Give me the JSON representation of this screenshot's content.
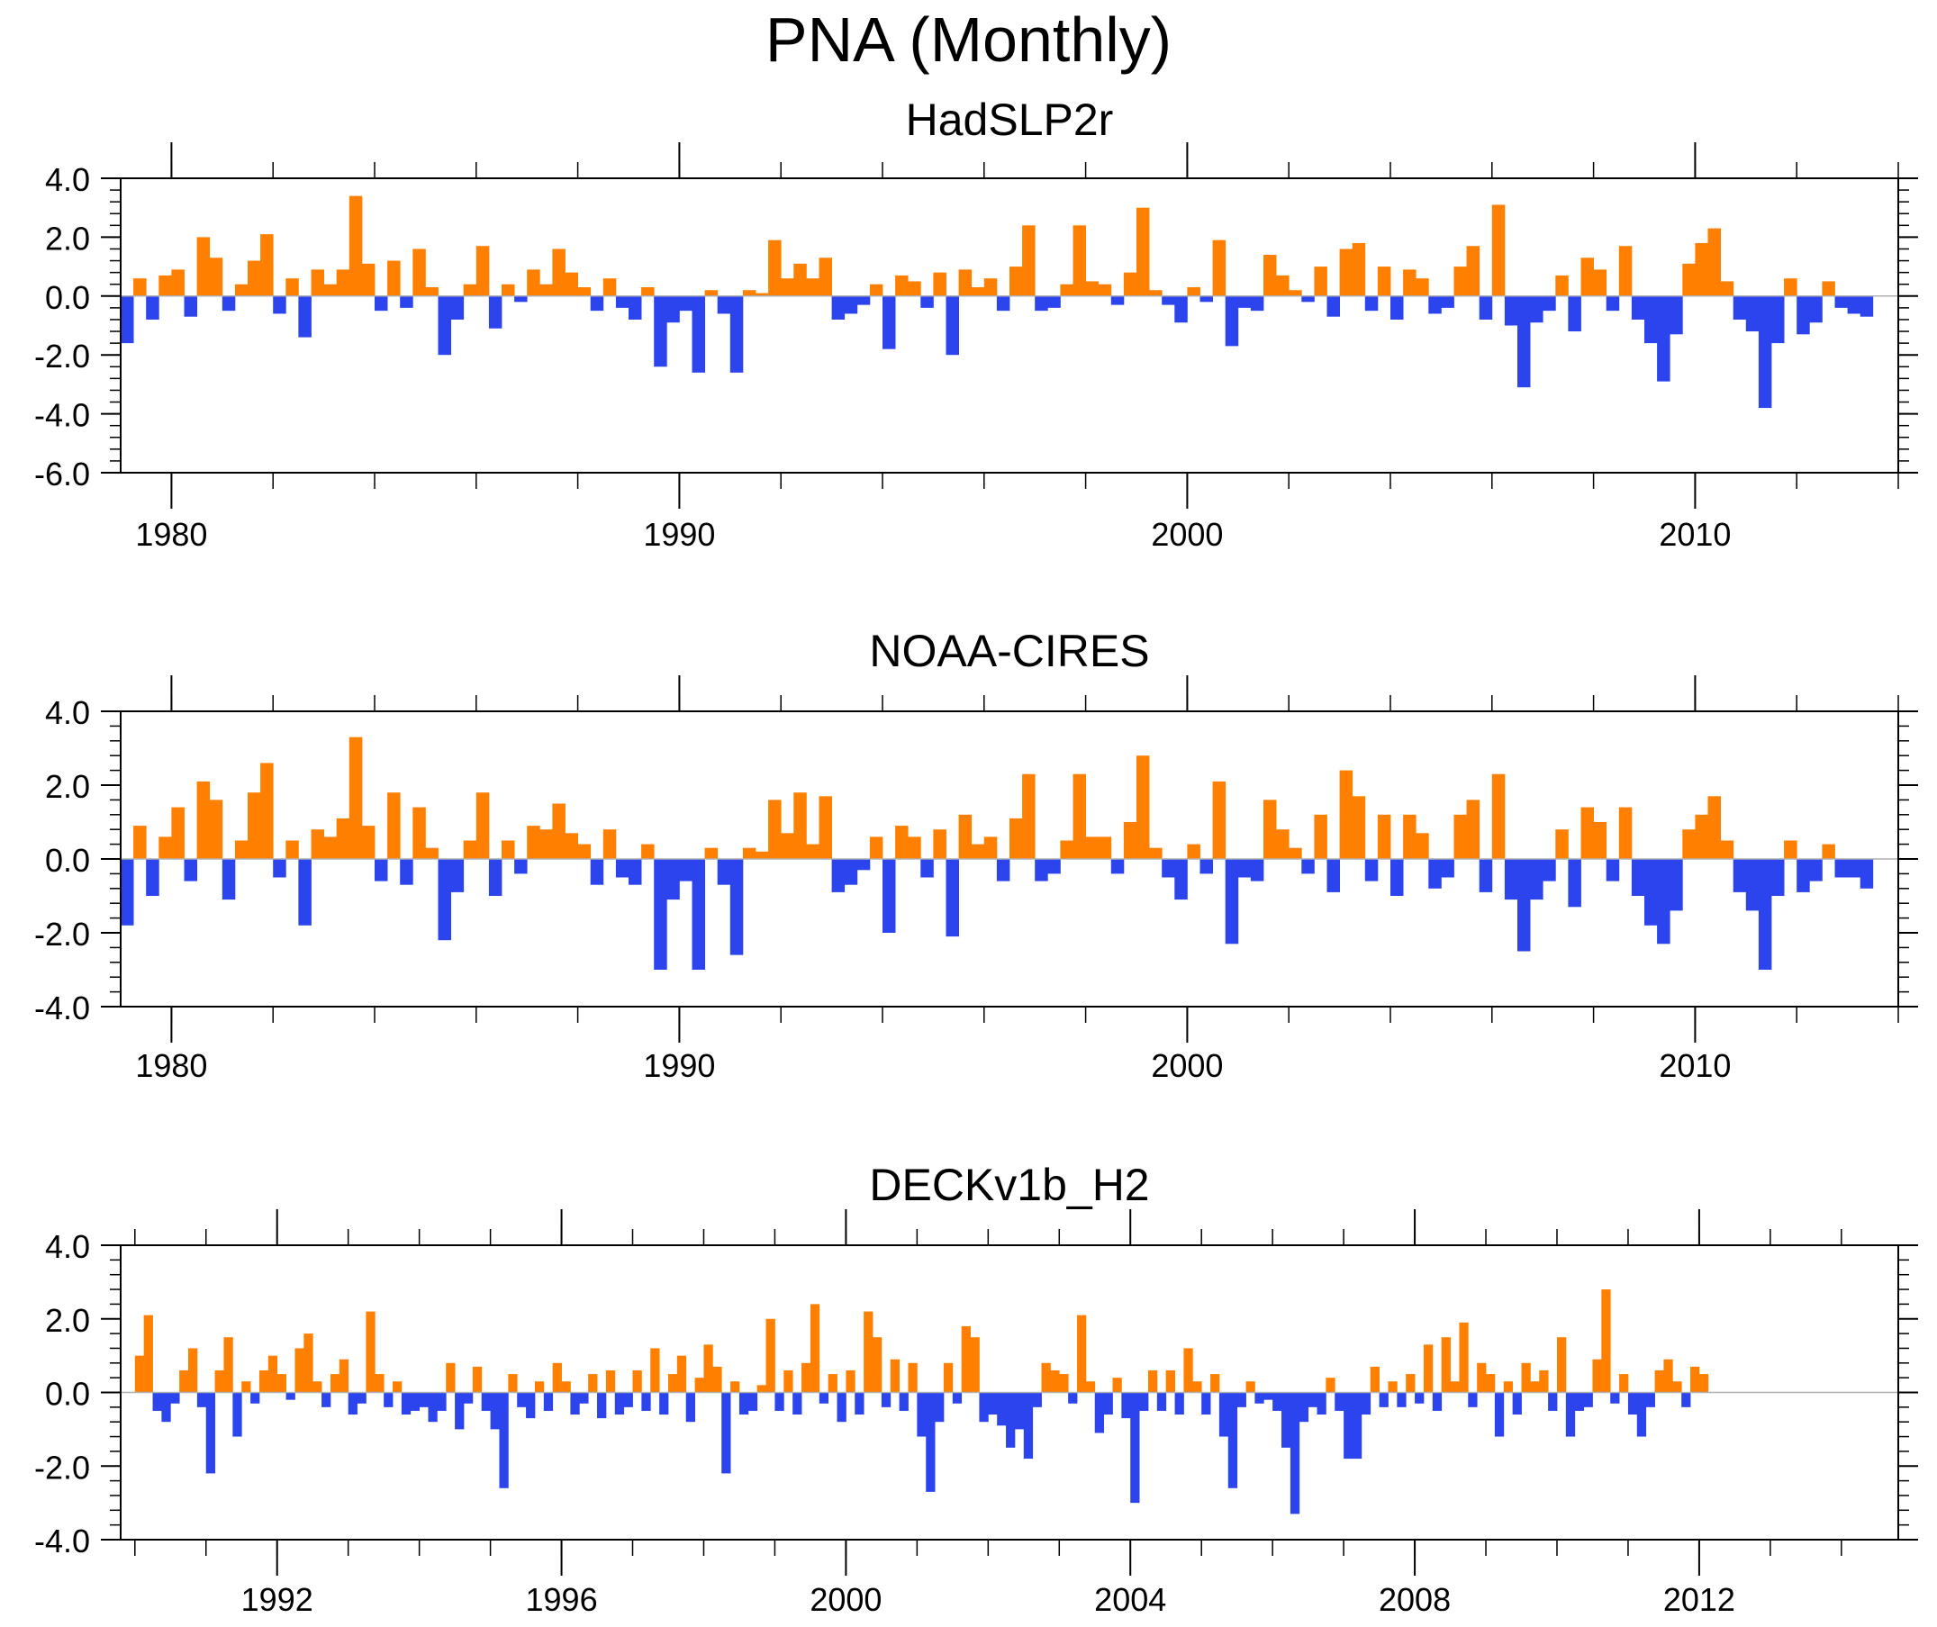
{
  "title": "PNA (Monthly)",
  "colors": {
    "positive": "#ff8000",
    "negative": "#2b44ee",
    "axis": "#000000"
  },
  "chart_data": [
    {
      "type": "area",
      "title": "HadSLP2r",
      "xlim": [
        1979.0,
        2014.0
      ],
      "ylim": [
        -6.0,
        4.0
      ],
      "yticks": [
        4.0,
        2.0,
        0.0,
        -2.0,
        -4.0,
        -6.0
      ],
      "ytick_labels": [
        "4.0",
        "2.0",
        "0.0",
        "-2.0",
        "-4.0",
        "-6.0"
      ],
      "xticks": [
        1980,
        1990,
        2000,
        2010
      ],
      "xtick_labels": [
        "1980",
        "1990",
        "2000",
        "2010"
      ],
      "xminor_step": 2,
      "xlabel": "",
      "ylabel": "",
      "series": [
        {
          "name": "PNA",
          "x_start": 1979.0,
          "x_step": 0.25,
          "values": [
            -1.6,
            0.6,
            -0.8,
            0.7,
            0.9,
            -0.7,
            2.0,
            1.3,
            -0.5,
            0.4,
            1.2,
            2.1,
            -0.6,
            0.6,
            -1.4,
            0.9,
            0.4,
            0.9,
            3.4,
            1.1,
            -0.5,
            1.2,
            -0.4,
            1.6,
            0.3,
            -2.0,
            -0.8,
            0.4,
            1.7,
            -1.1,
            0.4,
            -0.2,
            0.9,
            0.4,
            1.6,
            0.8,
            0.3,
            -0.5,
            0.6,
            -0.4,
            -0.8,
            0.3,
            -2.4,
            -0.9,
            -0.5,
            -2.6,
            0.2,
            -0.6,
            -2.6,
            0.2,
            0.1,
            1.9,
            0.6,
            1.1,
            0.6,
            1.3,
            -0.8,
            -0.6,
            -0.3,
            0.4,
            -1.8,
            0.7,
            0.5,
            -0.4,
            0.8,
            -2.0,
            0.9,
            0.3,
            0.6,
            -0.5,
            1.0,
            2.4,
            -0.5,
            -0.4,
            0.4,
            2.4,
            0.5,
            0.4,
            -0.3,
            0.8,
            3.0,
            0.2,
            -0.3,
            -0.9,
            0.3,
            -0.2,
            1.9,
            -1.7,
            -0.4,
            -0.5,
            1.4,
            0.7,
            0.2,
            -0.2,
            1.0,
            -0.7,
            1.6,
            1.8,
            -0.5,
            1.0,
            -0.8,
            0.9,
            0.6,
            -0.6,
            -0.4,
            1.0,
            1.7,
            -0.8,
            3.1,
            -1.0,
            -3.1,
            -0.9,
            -0.5,
            0.7,
            -1.2,
            1.3,
            0.9,
            -0.5,
            1.7,
            -0.8,
            -1.6,
            -2.9,
            -1.3,
            1.1,
            1.8,
            2.3,
            0.5,
            -0.8,
            -1.2,
            -3.8,
            -1.6,
            0.6,
            -1.3,
            -0.9,
            0.5,
            -0.4,
            -0.6,
            -0.7
          ]
        }
      ]
    },
    {
      "type": "area",
      "title": "NOAA-CIRES",
      "xlim": [
        1979.0,
        2014.0
      ],
      "ylim": [
        -4.0,
        4.0
      ],
      "yticks": [
        4.0,
        2.0,
        0.0,
        -2.0,
        -4.0
      ],
      "ytick_labels": [
        "4.0",
        "2.0",
        "0.0",
        "-2.0",
        "-4.0"
      ],
      "xticks": [
        1980,
        1990,
        2000,
        2010
      ],
      "xtick_labels": [
        "1980",
        "1990",
        "2000",
        "2010"
      ],
      "xminor_step": 2,
      "xlabel": "",
      "ylabel": "",
      "series": [
        {
          "name": "PNA",
          "x_start": 1979.0,
          "x_step": 0.25,
          "values": [
            -1.8,
            0.9,
            -1.0,
            0.6,
            1.4,
            -0.6,
            2.1,
            1.6,
            -1.1,
            0.5,
            1.8,
            2.6,
            -0.5,
            0.5,
            -1.8,
            0.8,
            0.6,
            1.1,
            3.3,
            0.9,
            -0.6,
            1.8,
            -0.7,
            1.4,
            0.3,
            -2.2,
            -0.9,
            0.5,
            1.8,
            -1.0,
            0.5,
            -0.4,
            0.9,
            0.8,
            1.5,
            0.7,
            0.4,
            -0.7,
            0.8,
            -0.5,
            -0.7,
            0.4,
            -3.0,
            -1.1,
            -0.6,
            -3.0,
            0.3,
            -0.7,
            -2.6,
            0.3,
            0.2,
            1.6,
            0.7,
            1.8,
            0.4,
            1.7,
            -0.9,
            -0.7,
            -0.3,
            0.6,
            -2.0,
            0.9,
            0.6,
            -0.5,
            0.8,
            -2.1,
            1.2,
            0.4,
            0.6,
            -0.6,
            1.1,
            2.3,
            -0.6,
            -0.4,
            0.5,
            2.3,
            0.6,
            0.6,
            -0.4,
            1.0,
            2.8,
            0.3,
            -0.5,
            -1.1,
            0.4,
            -0.4,
            2.1,
            -2.3,
            -0.5,
            -0.6,
            1.6,
            0.8,
            0.3,
            -0.4,
            1.2,
            -0.9,
            2.4,
            1.7,
            -0.6,
            1.2,
            -1.0,
            1.2,
            0.7,
            -0.8,
            -0.5,
            1.2,
            1.6,
            -0.9,
            2.3,
            -1.1,
            -2.5,
            -1.1,
            -0.6,
            0.8,
            -1.3,
            1.4,
            1.0,
            -0.6,
            1.4,
            -1.0,
            -1.8,
            -2.3,
            -1.4,
            0.8,
            1.2,
            1.7,
            0.5,
            -0.9,
            -1.4,
            -3.0,
            -1.0,
            0.5,
            -0.9,
            -0.6,
            0.4,
            -0.5,
            -0.5,
            -0.8
          ]
        }
      ]
    },
    {
      "type": "area",
      "title": "DECKv1b_H2",
      "xlim": [
        1989.8,
        2014.8
      ],
      "ylim": [
        -4.0,
        4.0
      ],
      "yticks": [
        4.0,
        2.0,
        0.0,
        -2.0,
        -4.0
      ],
      "ytick_labels": [
        "4.0",
        "2.0",
        "0.0",
        "-2.0",
        "-4.0"
      ],
      "xticks": [
        1992,
        1996,
        2000,
        2004,
        2008,
        2012
      ],
      "xtick_labels": [
        "1992",
        "1996",
        "2000",
        "2004",
        "2008",
        "2012"
      ],
      "xminor_step": 1,
      "xlabel": "",
      "ylabel": "",
      "series": [
        {
          "name": "PNA",
          "x_start": 1990.0,
          "x_step": 0.125,
          "values": [
            1.0,
            2.1,
            -0.5,
            -0.8,
            -0.3,
            0.6,
            1.2,
            -0.4,
            -2.2,
            0.6,
            1.5,
            -1.2,
            0.3,
            -0.3,
            0.6,
            1.0,
            0.5,
            -0.2,
            1.2,
            1.6,
            0.3,
            -0.4,
            0.5,
            0.9,
            -0.6,
            -0.3,
            2.2,
            0.5,
            -0.4,
            0.3,
            -0.6,
            -0.5,
            -0.4,
            -0.8,
            -0.5,
            0.8,
            -1.0,
            -0.3,
            0.7,
            -0.5,
            -1.0,
            -2.6,
            0.5,
            -0.4,
            -0.7,
            0.3,
            -0.5,
            0.8,
            0.3,
            -0.6,
            -0.3,
            0.5,
            -0.7,
            0.6,
            -0.6,
            -0.4,
            0.6,
            -0.5,
            1.2,
            -0.6,
            0.5,
            1.0,
            -0.8,
            0.4,
            1.3,
            0.7,
            -2.2,
            0.3,
            -0.6,
            -0.5,
            0.2,
            2.0,
            -0.5,
            0.6,
            -0.6,
            0.8,
            2.4,
            -0.3,
            0.5,
            -0.8,
            0.6,
            -0.6,
            2.2,
            1.5,
            -0.4,
            0.9,
            -0.5,
            0.8,
            -1.2,
            -2.7,
            -0.8,
            0.8,
            -0.3,
            1.8,
            1.5,
            -0.8,
            -0.6,
            -0.9,
            -1.5,
            -1.0,
            -1.8,
            -0.4,
            0.8,
            0.6,
            0.5,
            -0.3,
            2.1,
            0.3,
            -1.1,
            -0.6,
            0.4,
            -0.7,
            -3.0,
            -0.5,
            0.6,
            -0.5,
            0.6,
            -0.6,
            1.2,
            0.3,
            -0.6,
            0.5,
            -1.2,
            -2.6,
            -0.4,
            0.3,
            -0.3,
            -0.2,
            -0.5,
            -1.5,
            -3.3,
            -0.8,
            -0.4,
            -0.6,
            0.4,
            -0.5,
            -1.8,
            -1.8,
            -0.6,
            0.7,
            -0.4,
            0.3,
            -0.4,
            0.5,
            -0.3,
            1.3,
            -0.5,
            1.5,
            0.3,
            1.9,
            -0.4,
            0.8,
            0.5,
            -1.2,
            0.3,
            -0.6,
            0.8,
            0.3,
            0.6,
            -0.5,
            1.5,
            -1.2,
            -0.5,
            -0.4,
            0.9,
            2.8,
            -0.3,
            0.5,
            -0.6,
            -1.2,
            -0.4,
            0.6,
            0.9,
            0.3,
            -0.4,
            0.7,
            0.5
          ]
        }
      ]
    }
  ]
}
